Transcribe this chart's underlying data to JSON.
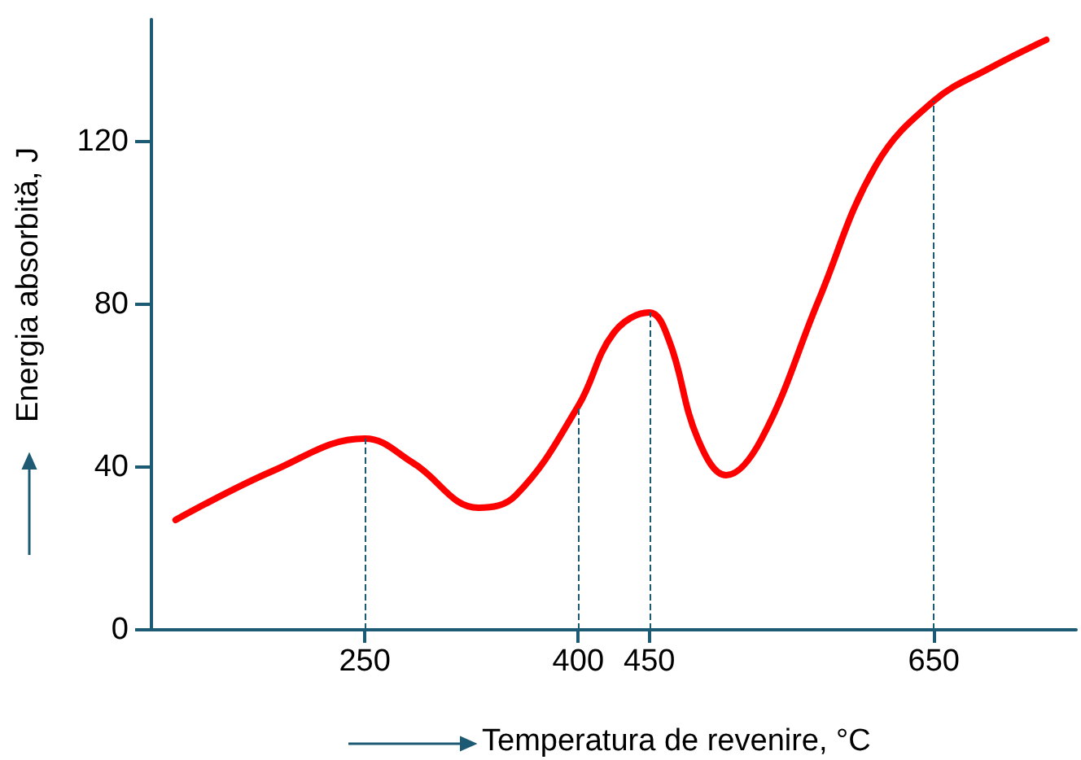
{
  "chart_data": {
    "type": "line",
    "xlabel": "Temperatura de revenire, °C",
    "ylabel": "Energia absorbită, J",
    "xlim": [
      100,
      750
    ],
    "xticks": [
      250,
      400,
      450,
      650
    ],
    "ylim": [
      0,
      150
    ],
    "yticks": [
      0,
      40,
      80,
      120
    ],
    "grid": false,
    "marker": "none",
    "line_style": "solid",
    "series": [
      {
        "color": "#ff0000",
        "x": [
          117,
          185,
          250,
          284,
          330,
          356,
          400,
          425,
          450,
          464,
          484,
          504,
          529,
          569,
          609,
          650,
          689,
          729
        ],
        "values": [
          27,
          39,
          47,
          41,
          30,
          33,
          55,
          73,
          78,
          71,
          47,
          38,
          47,
          81,
          114,
          130,
          138,
          145
        ]
      }
    ],
    "ref_lines": [
      {
        "axis": "x",
        "value": 250,
        "color": "#1d5a73",
        "line_style": "dashed"
      },
      {
        "axis": "x",
        "value": 400,
        "color": "#1d5a73",
        "line_style": "dashed"
      },
      {
        "axis": "x",
        "value": 450,
        "color": "#1d5a73",
        "line_style": "dashed"
      },
      {
        "axis": "x",
        "value": 650,
        "color": "#1d5a73",
        "line_style": "dashed"
      }
    ]
  }
}
